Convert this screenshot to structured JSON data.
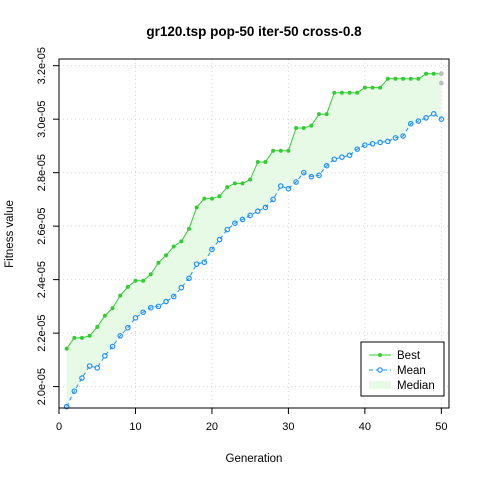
{
  "chart_data": {
    "type": "line",
    "title": "gr120.tsp pop-50 iter-50 cross-0.8",
    "xlabel": "Generation",
    "ylabel": "Fitness value",
    "xlim": [
      0,
      51
    ],
    "ylim": [
      1.92e-05,
      3.225e-05
    ],
    "x_ticks": [
      0,
      10,
      20,
      30,
      40,
      50
    ],
    "x_tick_labels": [
      "0",
      "10",
      "20",
      "30",
      "40",
      "50"
    ],
    "y_ticks": [
      2e-05,
      2.2e-05,
      2.4e-05,
      2.6e-05,
      2.8e-05,
      3e-05,
      3.2e-05
    ],
    "y_tick_labels": [
      "2.0e-05",
      "2.2e-05",
      "2.4e-05",
      "2.6e-05",
      "2.8e-05",
      "3.0e-05",
      "3.2e-05"
    ],
    "grid": true,
    "legend_position": "bottom-right",
    "x": [
      1,
      2,
      3,
      4,
      5,
      6,
      7,
      8,
      9,
      10,
      11,
      12,
      13,
      14,
      15,
      16,
      17,
      18,
      19,
      20,
      21,
      22,
      23,
      24,
      25,
      26,
      27,
      28,
      29,
      30,
      31,
      32,
      33,
      34,
      35,
      36,
      37,
      38,
      39,
      40,
      41,
      42,
      43,
      44,
      45,
      46,
      47,
      48,
      49,
      50
    ],
    "series": [
      {
        "name": "Best",
        "color": "#32CD32",
        "values": [
          2.142e-05,
          2.182e-05,
          2.182e-05,
          2.19e-05,
          2.223e-05,
          2.265e-05,
          2.293e-05,
          2.34e-05,
          2.373e-05,
          2.396e-05,
          2.396e-05,
          2.42e-05,
          2.463e-05,
          2.491e-05,
          2.524e-05,
          2.543e-05,
          2.59e-05,
          2.67e-05,
          2.703e-05,
          2.703e-05,
          2.712e-05,
          2.746e-05,
          2.76e-05,
          2.76e-05,
          2.774e-05,
          2.84e-05,
          2.84e-05,
          2.882e-05,
          2.882e-05,
          2.882e-05,
          2.967e-05,
          2.967e-05,
          2.976e-05,
          3.019e-05,
          3.019e-05,
          3.099e-05,
          3.099e-05,
          3.099e-05,
          3.099e-05,
          3.118e-05,
          3.118e-05,
          3.118e-05,
          3.151e-05,
          3.151e-05,
          3.151e-05,
          3.151e-05,
          3.151e-05,
          3.17e-05,
          3.17e-05,
          3.17e-05
        ]
      },
      {
        "name": "Mean",
        "color": "#1E90FF",
        "values": [
          1.925e-05,
          1.983e-05,
          2.032e-05,
          2.077e-05,
          2.07e-05,
          2.115e-05,
          2.15e-05,
          2.19e-05,
          2.22e-05,
          2.257e-05,
          2.278e-05,
          2.295e-05,
          2.3e-05,
          2.318e-05,
          2.337e-05,
          2.37e-05,
          2.405e-05,
          2.458e-05,
          2.465e-05,
          2.513e-05,
          2.55e-05,
          2.587e-05,
          2.611e-05,
          2.625e-05,
          2.64e-05,
          2.656e-05,
          2.67e-05,
          2.7e-05,
          2.75e-05,
          2.74e-05,
          2.765e-05,
          2.8e-05,
          2.785e-05,
          2.79e-05,
          2.826e-05,
          2.85e-05,
          2.858e-05,
          2.865e-05,
          2.888e-05,
          2.903e-05,
          2.908e-05,
          2.913e-05,
          2.917e-05,
          2.93e-05,
          2.937e-05,
          2.983e-05,
          2.993e-05,
          3.005e-05,
          3.02e-05,
          3e-05
        ]
      },
      {
        "name": "Median",
        "color": "#E6FAE6",
        "values": [
          1.97e-05,
          2.02e-05,
          2.06e-05,
          2.1e-05,
          2.11e-05,
          2.15e-05,
          2.19e-05,
          2.23e-05,
          2.26e-05,
          2.29e-05,
          2.31e-05,
          2.33e-05,
          2.35e-05,
          2.37e-05,
          2.4e-05,
          2.43e-05,
          2.47e-05,
          2.52e-05,
          2.54e-05,
          2.58e-05,
          2.61e-05,
          2.64e-05,
          2.66e-05,
          2.68e-05,
          2.7e-05,
          2.72e-05,
          2.74e-05,
          2.77e-05,
          2.81e-05,
          2.8e-05,
          2.83e-05,
          2.86e-05,
          2.85e-05,
          2.86e-05,
          2.89e-05,
          2.92e-05,
          2.93e-05,
          2.94e-05,
          2.96e-05,
          2.97e-05,
          2.98e-05,
          2.99e-05,
          3e-05,
          3.01e-05,
          3.02e-05,
          3.05e-05,
          3.06e-05,
          3.07e-05,
          3.08e-05,
          3.06e-05
        ]
      }
    ],
    "end_markers": {
      "color": "#BEBEBE",
      "values": [
        3.17e-05,
        3.135e-05
      ]
    },
    "legend": {
      "position": "bottom-right",
      "entries": [
        {
          "label": "Best",
          "color": "#32CD32",
          "style": "solid-point"
        },
        {
          "label": "Mean",
          "color": "#1E90FF",
          "style": "dashed-circle"
        },
        {
          "label": "Median",
          "color": "#E6FAE6",
          "style": "fill"
        }
      ]
    }
  }
}
